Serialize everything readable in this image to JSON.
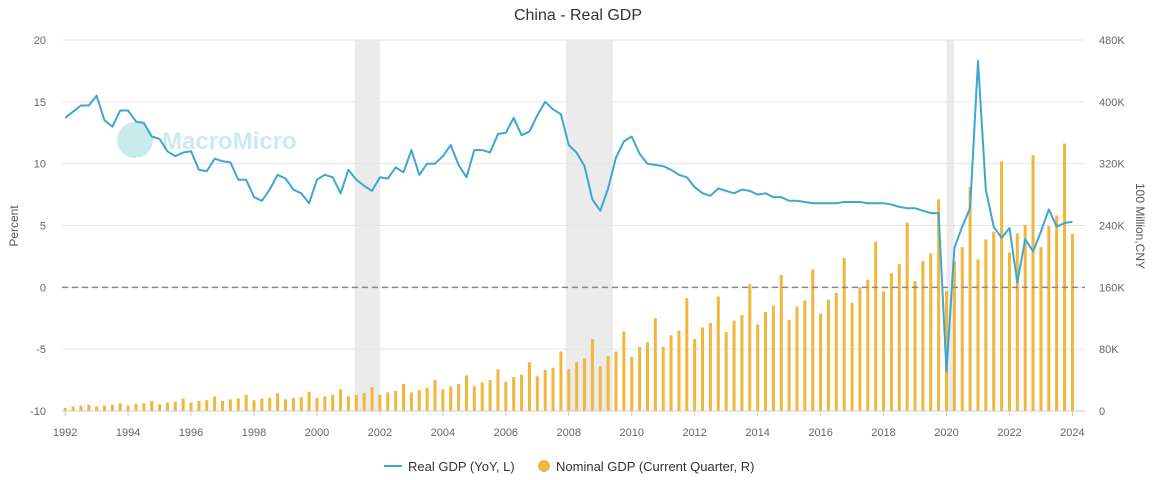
{
  "chart_data": {
    "type": "bar+line",
    "title": "China - Real GDP",
    "watermark": "MacroMicro",
    "y_left": {
      "label": "Percent",
      "range": [
        -10,
        20
      ],
      "ticks": [
        "20",
        "15",
        "10",
        "5",
        "0",
        "-5",
        "-10"
      ]
    },
    "y_right": {
      "label": "100 Million,CNY",
      "range": [
        0,
        480000
      ],
      "ticks": [
        "480K",
        "400K",
        "320K",
        "240K",
        "160K",
        "80K",
        "0"
      ]
    },
    "x_ticks": [
      "1992",
      "1994",
      "1996",
      "1998",
      "2000",
      "2002",
      "2004",
      "2006",
      "2008",
      "2010",
      "2012",
      "2014",
      "2016",
      "2018",
      "2020",
      "2022",
      "2024"
    ],
    "recessions": [
      [
        2001.2,
        2002.0
      ],
      [
        2007.9,
        2009.4
      ],
      [
        2020.0,
        2020.25
      ]
    ],
    "zero_line": 0,
    "colors": {
      "line": "#3ea7cf",
      "bar": "#f0b73c",
      "shade": "#ebebeb",
      "grid": "#e6e6e6",
      "zero": "#888888"
    },
    "series": [
      {
        "name": "Real GDP (YoY, L)",
        "type": "line",
        "x": [
          1992.0,
          1992.25,
          1992.5,
          1992.75,
          1993.0,
          1993.25,
          1993.5,
          1993.75,
          1994.0,
          1994.25,
          1994.5,
          1994.75,
          1995.0,
          1995.25,
          1995.5,
          1995.75,
          1996.0,
          1996.25,
          1996.5,
          1996.75,
          1997.0,
          1997.25,
          1997.5,
          1997.75,
          1998.0,
          1998.25,
          1998.5,
          1998.75,
          1999.0,
          1999.25,
          1999.5,
          1999.75,
          2000.0,
          2000.25,
          2000.5,
          2000.75,
          2001.0,
          2001.25,
          2001.5,
          2001.75,
          2002.0,
          2002.25,
          2002.5,
          2002.75,
          2003.0,
          2003.25,
          2003.5,
          2003.75,
          2004.0,
          2004.25,
          2004.5,
          2004.75,
          2005.0,
          2005.25,
          2005.5,
          2005.75,
          2006.0,
          2006.25,
          2006.5,
          2006.75,
          2007.0,
          2007.25,
          2007.5,
          2007.75,
          2008.0,
          2008.25,
          2008.5,
          2008.75,
          2009.0,
          2009.25,
          2009.5,
          2009.75,
          2010.0,
          2010.25,
          2010.5,
          2010.75,
          2011.0,
          2011.25,
          2011.5,
          2011.75,
          2012.0,
          2012.25,
          2012.5,
          2012.75,
          2013.0,
          2013.25,
          2013.5,
          2013.75,
          2014.0,
          2014.25,
          2014.5,
          2014.75,
          2015.0,
          2015.25,
          2015.5,
          2015.75,
          2016.0,
          2016.25,
          2016.5,
          2016.75,
          2017.0,
          2017.25,
          2017.5,
          2017.75,
          2018.0,
          2018.25,
          2018.5,
          2018.75,
          2019.0,
          2019.25,
          2019.5,
          2019.75,
          2020.0,
          2020.25,
          2020.5,
          2020.75,
          2021.0,
          2021.25,
          2021.5,
          2021.75,
          2022.0,
          2022.25,
          2022.5,
          2022.75,
          2023.0,
          2023.25,
          2023.5,
          2023.75,
          2024.0
        ],
        "values": [
          13.7,
          14.2,
          14.7,
          14.7,
          15.5,
          13.5,
          13.0,
          14.3,
          14.3,
          13.4,
          13.3,
          12.2,
          12.0,
          11.0,
          10.6,
          10.9,
          11.0,
          9.5,
          9.4,
          10.4,
          10.2,
          10.1,
          8.7,
          8.7,
          7.3,
          7.0,
          7.9,
          9.1,
          8.8,
          7.9,
          7.6,
          6.8,
          8.7,
          9.1,
          8.9,
          7.6,
          9.5,
          8.7,
          8.2,
          7.8,
          8.9,
          8.8,
          9.7,
          9.3,
          11.1,
          9.1,
          10.0,
          10.0,
          10.6,
          11.5,
          9.9,
          8.9,
          11.1,
          11.1,
          10.9,
          12.4,
          12.5,
          13.7,
          12.3,
          12.6,
          13.9,
          15.0,
          14.4,
          14.0,
          11.5,
          10.9,
          9.8,
          7.1,
          6.2,
          8.0,
          10.5,
          11.8,
          12.2,
          10.8,
          10.0,
          9.9,
          9.8,
          9.5,
          9.1,
          8.9,
          8.1,
          7.6,
          7.4,
          8.0,
          7.8,
          7.6,
          7.9,
          7.8,
          7.5,
          7.6,
          7.3,
          7.3,
          7.0,
          7.0,
          6.9,
          6.8,
          6.8,
          6.8,
          6.8,
          6.9,
          6.9,
          6.9,
          6.8,
          6.8,
          6.8,
          6.7,
          6.5,
          6.4,
          6.4,
          6.2,
          6.0,
          6.0,
          -6.8,
          3.2,
          4.9,
          6.4,
          18.3,
          7.9,
          4.9,
          4.0,
          4.8,
          0.4,
          3.9,
          2.9,
          4.5,
          6.3,
          4.9,
          5.2,
          5.3
        ]
      },
      {
        "name": "Nominal GDP (Current Quarter, R)",
        "type": "bar",
        "x": [
          1992.0,
          1992.25,
          1992.5,
          1992.75,
          1993.0,
          1993.25,
          1993.5,
          1993.75,
          1994.0,
          1994.25,
          1994.5,
          1994.75,
          1995.0,
          1995.25,
          1995.5,
          1995.75,
          1996.0,
          1996.25,
          1996.5,
          1996.75,
          1997.0,
          1997.25,
          1997.5,
          1997.75,
          1998.0,
          1998.25,
          1998.5,
          1998.75,
          1999.0,
          1999.25,
          1999.5,
          1999.75,
          2000.0,
          2000.25,
          2000.5,
          2000.75,
          2001.0,
          2001.25,
          2001.5,
          2001.75,
          2002.0,
          2002.25,
          2002.5,
          2002.75,
          2003.0,
          2003.25,
          2003.5,
          2003.75,
          2004.0,
          2004.25,
          2004.5,
          2004.75,
          2005.0,
          2005.25,
          2005.5,
          2005.75,
          2006.0,
          2006.25,
          2006.5,
          2006.75,
          2007.0,
          2007.25,
          2007.5,
          2007.75,
          2008.0,
          2008.25,
          2008.5,
          2008.75,
          2009.0,
          2009.25,
          2009.5,
          2009.75,
          2010.0,
          2010.25,
          2010.5,
          2010.75,
          2011.0,
          2011.25,
          2011.5,
          2011.75,
          2012.0,
          2012.25,
          2012.5,
          2012.75,
          2013.0,
          2013.25,
          2013.5,
          2013.75,
          2014.0,
          2014.25,
          2014.5,
          2014.75,
          2015.0,
          2015.25,
          2015.5,
          2015.75,
          2016.0,
          2016.25,
          2016.5,
          2016.75,
          2017.0,
          2017.25,
          2017.5,
          2017.75,
          2018.0,
          2018.25,
          2018.5,
          2018.75,
          2019.0,
          2019.25,
          2019.5,
          2019.75,
          2020.0,
          2020.25,
          2020.5,
          2020.75,
          2021.0,
          2021.25,
          2021.5,
          2021.75,
          2022.0,
          2022.25,
          2022.5,
          2022.75,
          2023.0,
          2023.25,
          2023.5,
          2023.75,
          2024.0
        ],
        "values": [
          4000,
          6000,
          7000,
          8000,
          6000,
          7000,
          8000,
          10000,
          7000,
          9000,
          10000,
          13000,
          9000,
          11000,
          12000,
          16000,
          11000,
          13000,
          14000,
          19000,
          13000,
          15000,
          16000,
          21000,
          14000,
          16000,
          17000,
          23000,
          15000,
          17000,
          18000,
          25000,
          17000,
          19000,
          21000,
          28000,
          19000,
          21000,
          23000,
          31000,
          21000,
          24000,
          26000,
          35000,
          24000,
          27000,
          30000,
          40000,
          28000,
          32000,
          35000,
          46000,
          32000,
          37000,
          40000,
          54000,
          38000,
          44000,
          47000,
          63000,
          45000,
          53000,
          56000,
          77000,
          54000,
          63000,
          68000,
          93000,
          58000,
          71000,
          77000,
          103000,
          70000,
          83000,
          89000,
          120000,
          83000,
          98000,
          104000,
          146000,
          93000,
          108000,
          114000,
          148000,
          102000,
          117000,
          124000,
          164000,
          112000,
          128000,
          136000,
          176000,
          118000,
          135000,
          143000,
          183000,
          126000,
          144000,
          153000,
          198000,
          140000,
          160000,
          170000,
          219000,
          155000,
          178000,
          190000,
          244000,
          168000,
          194000,
          204000,
          274000,
          155000,
          194000,
          212000,
          290000,
          196000,
          222000,
          232000,
          323000,
          205000,
          230000,
          241000,
          331000,
          212000,
          239000,
          253000,
          346000,
          229000
        ]
      }
    ]
  }
}
